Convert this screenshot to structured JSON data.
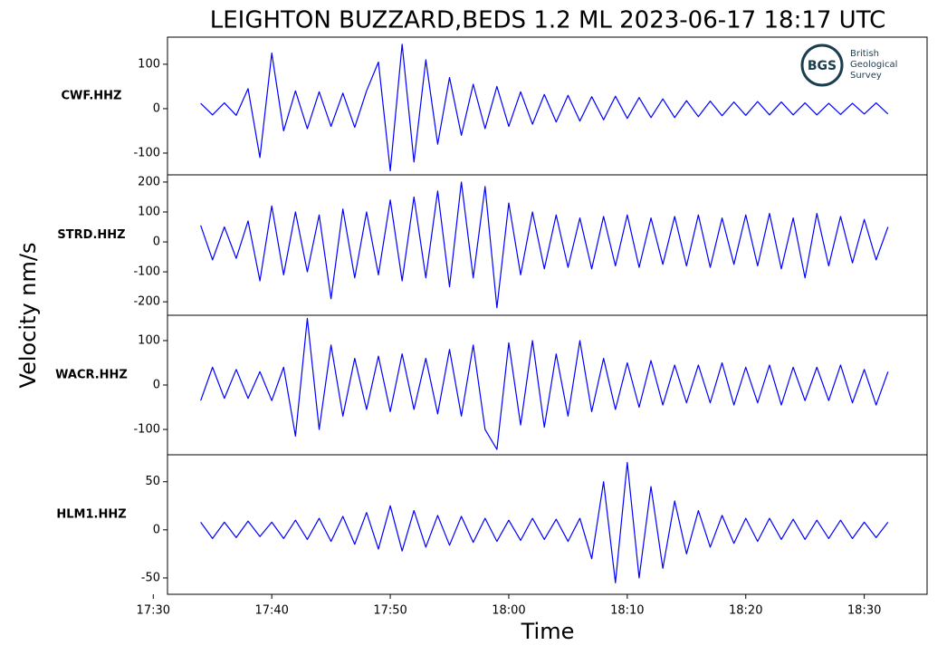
{
  "figure": {
    "title": "LEIGHTON BUZZARD,BEDS 1.2 ML   2023-06-17 18:17 UTC",
    "ylabel": "Velocity nm/s",
    "xlabel": "Time",
    "logo": {
      "abbr": "BGS",
      "lines": [
        "British",
        "Geological",
        "Survey"
      ]
    }
  },
  "chart_data": [
    {
      "type": "line",
      "x": [
        1054,
        1055,
        1056,
        1057,
        1058,
        1059,
        1060,
        1061,
        1062,
        1063,
        1064,
        1065,
        1066,
        1067,
        1068,
        1069,
        1070,
        1071,
        1072,
        1073,
        1074,
        1075,
        1076,
        1077,
        1078,
        1079,
        1080,
        1081,
        1082,
        1083,
        1084,
        1085,
        1086,
        1087,
        1088,
        1089,
        1090,
        1091,
        1092,
        1093,
        1094,
        1095,
        1096,
        1097,
        1098,
        1099,
        1100,
        1101,
        1102,
        1103,
        1104,
        1105,
        1106,
        1107,
        1108,
        1109,
        1110,
        1111,
        1112
      ],
      "series": [
        {
          "name": "CWF.HHZ",
          "color": "#0000ff",
          "values": [
            12,
            -14,
            13,
            -15,
            45,
            -110,
            125,
            -50,
            40,
            -45,
            38,
            -40,
            35,
            -42,
            40,
            105,
            -140,
            145,
            -120,
            110,
            -80,
            70,
            -60,
            55,
            -45,
            50,
            -40,
            38,
            -35,
            32,
            -30,
            30,
            -28,
            27,
            -25,
            28,
            -22,
            25,
            -20,
            22,
            -20,
            18,
            -18,
            17,
            -16,
            15,
            -15,
            16,
            -14,
            15,
            -14,
            13,
            -14,
            12,
            -13,
            12,
            -12,
            13,
            -12
          ]
        }
      ],
      "xlim": [
        1051.2,
        1115.3
      ],
      "ylim": [
        -149,
        161
      ],
      "yticks": [
        -100,
        0,
        100
      ]
    },
    {
      "type": "line",
      "x": [
        1054,
        1055,
        1056,
        1057,
        1058,
        1059,
        1060,
        1061,
        1062,
        1063,
        1064,
        1065,
        1066,
        1067,
        1068,
        1069,
        1070,
        1071,
        1072,
        1073,
        1074,
        1075,
        1076,
        1077,
        1078,
        1079,
        1080,
        1081,
        1082,
        1083,
        1084,
        1085,
        1086,
        1087,
        1088,
        1089,
        1090,
        1091,
        1092,
        1093,
        1094,
        1095,
        1096,
        1097,
        1098,
        1099,
        1100,
        1101,
        1102,
        1103,
        1104,
        1105,
        1106,
        1107,
        1108,
        1109,
        1110,
        1111,
        1112
      ],
      "series": [
        {
          "name": "STRD.HHZ",
          "color": "#0000ff",
          "values": [
            55,
            -60,
            50,
            -55,
            70,
            -130,
            120,
            -110,
            100,
            -100,
            90,
            -190,
            110,
            -120,
            100,
            -110,
            140,
            -130,
            150,
            -120,
            170,
            -150,
            200,
            -120,
            185,
            -220,
            130,
            -110,
            100,
            -90,
            90,
            -85,
            80,
            -90,
            85,
            -80,
            90,
            -85,
            80,
            -75,
            85,
            -80,
            90,
            -85,
            80,
            -75,
            90,
            -80,
            95,
            -90,
            80,
            -120,
            95,
            -80,
            85,
            -70,
            75,
            -60,
            50
          ]
        }
      ],
      "xlim": [
        1051.2,
        1115.3
      ],
      "ylim": [
        -245,
        224
      ],
      "yticks": [
        -200,
        -100,
        0,
        100,
        200
      ]
    },
    {
      "type": "line",
      "x": [
        1054,
        1055,
        1056,
        1057,
        1058,
        1059,
        1060,
        1061,
        1062,
        1063,
        1064,
        1065,
        1066,
        1067,
        1068,
        1069,
        1070,
        1071,
        1072,
        1073,
        1074,
        1075,
        1076,
        1077,
        1078,
        1079,
        1080,
        1081,
        1082,
        1083,
        1084,
        1085,
        1086,
        1087,
        1088,
        1089,
        1090,
        1091,
        1092,
        1093,
        1094,
        1095,
        1096,
        1097,
        1098,
        1099,
        1100,
        1101,
        1102,
        1103,
        1104,
        1105,
        1106,
        1107,
        1108,
        1109,
        1110,
        1111,
        1112
      ],
      "series": [
        {
          "name": "WACR.HHZ",
          "color": "#0000ff",
          "values": [
            -35,
            40,
            -30,
            35,
            -30,
            30,
            -35,
            40,
            -115,
            150,
            -100,
            90,
            -70,
            60,
            -55,
            65,
            -60,
            70,
            -55,
            60,
            -65,
            80,
            -70,
            90,
            -100,
            -145,
            95,
            -90,
            100,
            -95,
            70,
            -70,
            100,
            -60,
            60,
            -55,
            50,
            -50,
            55,
            -45,
            45,
            -40,
            45,
            -40,
            50,
            -45,
            40,
            -40,
            45,
            -45,
            40,
            -35,
            40,
            -35,
            45,
            -40,
            35,
            -45,
            30
          ]
        }
      ],
      "xlim": [
        1051.2,
        1115.3
      ],
      "ylim": [
        -157,
        157
      ],
      "yticks": [
        -100,
        0,
        100
      ]
    },
    {
      "type": "line",
      "x": [
        1054,
        1055,
        1056,
        1057,
        1058,
        1059,
        1060,
        1061,
        1062,
        1063,
        1064,
        1065,
        1066,
        1067,
        1068,
        1069,
        1070,
        1071,
        1072,
        1073,
        1074,
        1075,
        1076,
        1077,
        1078,
        1079,
        1080,
        1081,
        1082,
        1083,
        1084,
        1085,
        1086,
        1087,
        1088,
        1089,
        1090,
        1091,
        1092,
        1093,
        1094,
        1095,
        1096,
        1097,
        1098,
        1099,
        1100,
        1101,
        1102,
        1103,
        1104,
        1105,
        1106,
        1107,
        1108,
        1109,
        1110,
        1111,
        1112
      ],
      "series": [
        {
          "name": "HLM1.HHZ",
          "color": "#0000ff",
          "values": [
            8,
            -9,
            8,
            -8,
            9,
            -7,
            8,
            -9,
            10,
            -10,
            12,
            -12,
            14,
            -15,
            18,
            -20,
            25,
            -22,
            20,
            -18,
            15,
            -16,
            14,
            -13,
            12,
            -12,
            10,
            -11,
            12,
            -10,
            11,
            -12,
            12,
            -30,
            50,
            -55,
            70,
            -50,
            45,
            -40,
            30,
            -25,
            20,
            -18,
            15,
            -14,
            12,
            -12,
            12,
            -10,
            11,
            -10,
            10,
            -9,
            10,
            -9,
            8,
            -8,
            8
          ]
        }
      ],
      "xlim": [
        1051.2,
        1115.3
      ],
      "ylim": [
        -67,
        78
      ],
      "yticks": [
        -50,
        0,
        50
      ],
      "xticks": [
        {
          "value": 1050,
          "label": "17:30"
        },
        {
          "value": 1060,
          "label": "17:40"
        },
        {
          "value": 1070,
          "label": "17:50"
        },
        {
          "value": 1080,
          "label": "18:00"
        },
        {
          "value": 1090,
          "label": "18:10"
        },
        {
          "value": 1100,
          "label": "18:20"
        },
        {
          "value": 1110,
          "label": "18:30"
        }
      ]
    }
  ]
}
